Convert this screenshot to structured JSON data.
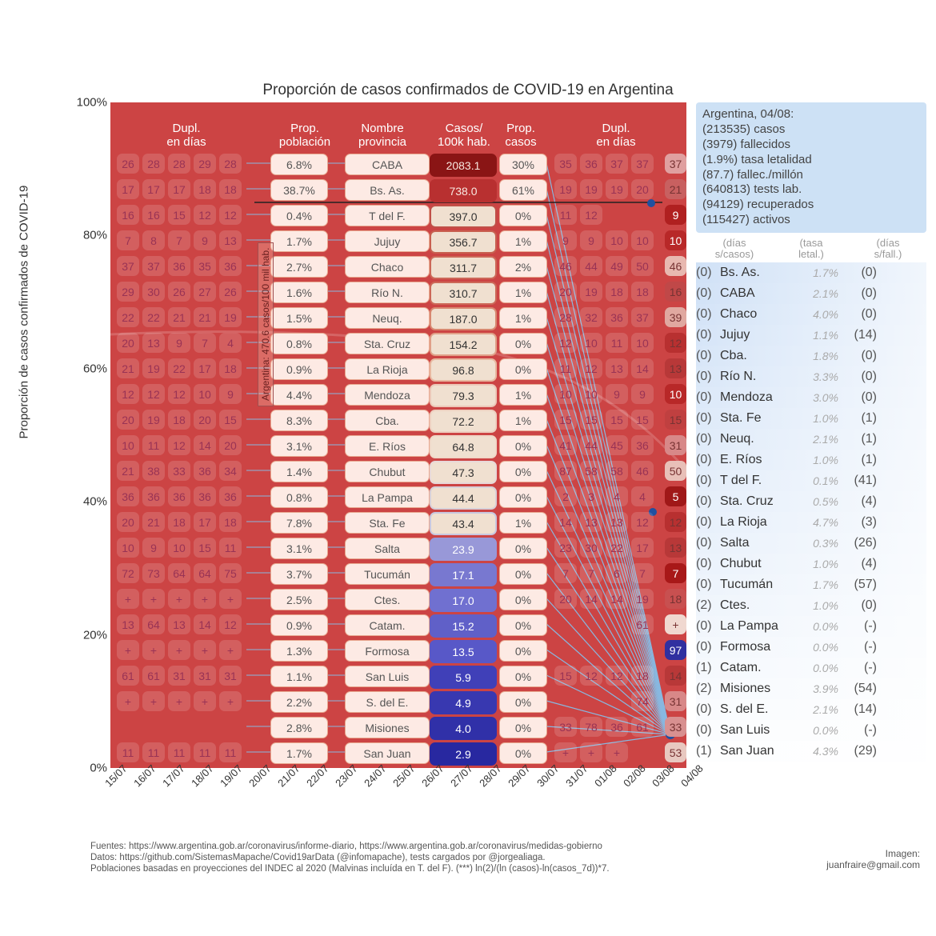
{
  "title": "Proporción de casos confirmados de COVID-19 en Argentina",
  "ylabel": "Proporción de casos confirmados de COVID-19",
  "headers": {
    "duplL": "Dupl.\nen días",
    "prop": "Prop.\npoblación",
    "name": "Nombre\nprovincia",
    "casos": "Casos/\n100k hab.",
    "pc": "Prop.\ncasos",
    "duplR": "Dupl.\nen días"
  },
  "y_ticks": [
    0,
    20,
    40,
    60,
    80,
    100
  ],
  "x_dates": [
    "15/07",
    "16/07",
    "17/07",
    "18/07",
    "19/07",
    "20/07",
    "21/07",
    "22/07",
    "23/07",
    "24/07",
    "25/07",
    "26/07",
    "27/07",
    "28/07",
    "29/07",
    "30/07",
    "31/07",
    "01/08",
    "02/08",
    "03/08",
    "04/08"
  ],
  "arg_note": "Argentina: 470.6 casos/100 mil hab.",
  "casos_scale": {
    "lo": "#4040c0",
    "mid": "#f0e0d0",
    "hi": "#9a1010"
  },
  "rows": [
    {
      "dL": [
        "26",
        "28",
        "28",
        "29",
        "28"
      ],
      "prop": "6.8%",
      "name": "CABA",
      "casos": "2083.1",
      "cCol": "#8a1515",
      "pc": "30%",
      "dR": [
        "35",
        "36",
        "37",
        "37"
      ],
      "dup": "37",
      "dupCol": "#e0a0a0"
    },
    {
      "dL": [
        "17",
        "17",
        "17",
        "18",
        "18"
      ],
      "prop": "38.7%",
      "name": "Bs. As.",
      "casos": "738.0",
      "cCol": "#b83030",
      "pc": "61%",
      "dR": [
        "19",
        "19",
        "19",
        "20"
      ],
      "dup": "21",
      "dupCol": "#c86060"
    },
    {
      "dL": [
        "16",
        "16",
        "15",
        "12",
        "12"
      ],
      "prop": "0.4%",
      "name": "T del F.",
      "casos": "397.0",
      "cCol": "#c05048",
      "pc": "0%",
      "dR": [
        "11",
        "12",
        "",
        ""
      ],
      "dup": "9",
      "dupCol": "#b02020"
    },
    {
      "dL": [
        "7",
        "8",
        "7",
        "9",
        "13"
      ],
      "prop": "1.7%",
      "name": "Jujuy",
      "casos": "356.7",
      "cCol": "#c86050",
      "pc": "1%",
      "dR": [
        "9",
        "9",
        "10",
        "10"
      ],
      "dup": "10",
      "dupCol": "#b82828"
    },
    {
      "dL": [
        "37",
        "37",
        "36",
        "35",
        "36"
      ],
      "prop": "2.7%",
      "name": "Chaco",
      "casos": "311.7",
      "cCol": "#cc6858",
      "pc": "2%",
      "dR": [
        "46",
        "44",
        "49",
        "50"
      ],
      "dup": "46",
      "dupCol": "#e8b8b0"
    },
    {
      "dL": [
        "29",
        "30",
        "26",
        "27",
        "26"
      ],
      "prop": "1.6%",
      "name": "Río N.",
      "casos": "310.7",
      "cCol": "#cc6858",
      "pc": "1%",
      "dR": [
        "20",
        "19",
        "18",
        "18"
      ],
      "dup": "16",
      "dupCol": "#c04848"
    },
    {
      "dL": [
        "22",
        "22",
        "21",
        "21",
        "19"
      ],
      "prop": "1.5%",
      "name": "Neuq.",
      "casos": "187.0",
      "cCol": "#d88870",
      "pc": "1%",
      "dR": [
        "28",
        "32",
        "36",
        "37"
      ],
      "dup": "39",
      "dupCol": "#e0a8a0"
    },
    {
      "dL": [
        "20",
        "13",
        "9",
        "7",
        "4"
      ],
      "prop": "0.8%",
      "name": "Sta. Cruz",
      "casos": "154.2",
      "cCol": "#e0a088",
      "pc": "0%",
      "dR": [
        "12",
        "10",
        "11",
        "10"
      ],
      "dup": "12",
      "dupCol": "#b83030"
    },
    {
      "dL": [
        "21",
        "19",
        "22",
        "17",
        "18"
      ],
      "prop": "0.9%",
      "name": "La Rioja",
      "casos": "96.8",
      "cCol": "#e8b8a0",
      "pc": "0%",
      "dR": [
        "11",
        "12",
        "13",
        "14"
      ],
      "dup": "13",
      "dupCol": "#b83838"
    },
    {
      "dL": [
        "12",
        "12",
        "12",
        "10",
        "9"
      ],
      "prop": "4.4%",
      "name": "Mendoza",
      "casos": "79.3",
      "cCol": "#ecc8b8",
      "pc": "1%",
      "dR": [
        "10",
        "10",
        "9",
        "9"
      ],
      "dup": "10",
      "dupCol": "#b82828"
    },
    {
      "dL": [
        "20",
        "19",
        "18",
        "20",
        "15"
      ],
      "prop": "8.3%",
      "name": "Cba.",
      "casos": "72.2",
      "cCol": "#eed0c0",
      "pc": "1%",
      "dR": [
        "15",
        "15",
        "15",
        "15"
      ],
      "dup": "15",
      "dupCol": "#c04040"
    },
    {
      "dL": [
        "10",
        "11",
        "12",
        "14",
        "20"
      ],
      "prop": "3.1%",
      "name": "E. Ríos",
      "casos": "64.8",
      "cCol": "#f0d8c8",
      "pc": "0%",
      "dR": [
        "41",
        "44",
        "45",
        "36"
      ],
      "dup": "31",
      "dupCol": "#d88888"
    },
    {
      "dL": [
        "21",
        "38",
        "33",
        "36",
        "34"
      ],
      "prop": "1.4%",
      "name": "Chubut",
      "casos": "47.3",
      "cCol": "#e8d8d8",
      "pc": "0%",
      "dR": [
        "87",
        "58",
        "58",
        "46"
      ],
      "dup": "50",
      "dupCol": "#e8c0b8"
    },
    {
      "dL": [
        "36",
        "36",
        "36",
        "36",
        "36"
      ],
      "prop": "0.8%",
      "name": "La Pampa",
      "casos": "44.4",
      "cCol": "#d8d0d8",
      "pc": "0%",
      "dR": [
        "2",
        "3",
        "4",
        "4"
      ],
      "dup": "5",
      "dupCol": "#a01818"
    },
    {
      "dL": [
        "20",
        "21",
        "18",
        "17",
        "18"
      ],
      "prop": "7.8%",
      "name": "Sta. Fe",
      "casos": "43.4",
      "cCol": "#c8c8e0",
      "pc": "1%",
      "dR": [
        "14",
        "13",
        "13",
        "12"
      ],
      "dup": "12",
      "dupCol": "#b83030"
    },
    {
      "dL": [
        "10",
        "9",
        "10",
        "15",
        "11"
      ],
      "prop": "3.1%",
      "name": "Salta",
      "casos": "23.9",
      "cCol": "#9898d8",
      "pc": "0%",
      "dR": [
        "23",
        "30",
        "22",
        "17"
      ],
      "dup": "13",
      "dupCol": "#b83838"
    },
    {
      "dL": [
        "72",
        "73",
        "64",
        "64",
        "75"
      ],
      "prop": "3.7%",
      "name": "Tucumán",
      "casos": "17.1",
      "cCol": "#7878d0",
      "pc": "0%",
      "dR": [
        "7",
        "7",
        "6",
        "7"
      ],
      "dup": "7",
      "dupCol": "#a81818"
    },
    {
      "dL": [
        "+",
        "+",
        "+",
        "+",
        "+"
      ],
      "prop": "2.5%",
      "name": "Ctes.",
      "casos": "17.0",
      "cCol": "#7070d0",
      "pc": "0%",
      "dR": [
        "20",
        "14",
        "14",
        "19"
      ],
      "dup": "18",
      "dupCol": "#c85050"
    },
    {
      "dL": [
        "13",
        "64",
        "13",
        "14",
        "12"
      ],
      "prop": "0.9%",
      "name": "Catam.",
      "casos": "15.2",
      "cCol": "#6060c8",
      "pc": "0%",
      "dR": [
        "",
        "",
        "",
        "61"
      ],
      "dup": "+",
      "dupCol": "#f0d8d0"
    },
    {
      "dL": [
        "+",
        "+",
        "+",
        "+",
        "+"
      ],
      "prop": "1.3%",
      "name": "Formosa",
      "casos": "13.5",
      "cCol": "#5858c8",
      "pc": "0%",
      "dR": [
        "",
        "",
        "",
        ""
      ],
      "dup": "97",
      "dupCol": "#3030a0"
    },
    {
      "dL": [
        "61",
        "61",
        "31",
        "31",
        "31"
      ],
      "prop": "1.1%",
      "name": "San Luis",
      "casos": "5.9",
      "cCol": "#4040b8",
      "pc": "0%",
      "dR": [
        "15",
        "12",
        "12",
        "18"
      ],
      "dup": "14",
      "dupCol": "#b83838"
    },
    {
      "dL": [
        "+",
        "+",
        "+",
        "+",
        "+"
      ],
      "prop": "2.2%",
      "name": "S. del E.",
      "casos": "4.9",
      "cCol": "#3838b0",
      "pc": "0%",
      "dR": [
        "",
        "",
        "",
        "74"
      ],
      "dup": "31",
      "dupCol": "#d88888"
    },
    {
      "dL": [
        "",
        "",
        "",
        "",
        ""
      ],
      "prop": "2.8%",
      "name": "Misiones",
      "casos": "4.0",
      "cCol": "#3030a8",
      "pc": "0%",
      "dR": [
        "33",
        "78",
        "36",
        "61"
      ],
      "dup": "33",
      "dupCol": "#d89090"
    },
    {
      "dL": [
        "11",
        "11",
        "11",
        "11",
        "11"
      ],
      "prop": "1.7%",
      "name": "San Juan",
      "casos": "2.9",
      "cCol": "#2828a0",
      "pc": "0%",
      "dR": [
        "+",
        "+",
        "+",
        ""
      ],
      "dup": "53",
      "dupCol": "#e8c8c0"
    }
  ],
  "summary": {
    "head": "Argentina, 04/08:",
    "lines": [
      "(213535) casos",
      "(3979) fallecidos",
      "(1.9%) tasa letalidad",
      "(87.7) fallec./millón",
      "(640813) tests lab.",
      "(94129) recuperados",
      "(115427) activos"
    ]
  },
  "right_header": [
    "(días\ns/casos)",
    "(tasa\nletal.)",
    "(días\ns/fall.)"
  ],
  "right_rows": [
    {
      "d": "(0)",
      "n": "Bs. As.",
      "t": "1.7%",
      "f": "(0)"
    },
    {
      "d": "(0)",
      "n": "CABA",
      "t": "2.1%",
      "f": "(0)"
    },
    {
      "d": "(0)",
      "n": "Chaco",
      "t": "4.0%",
      "f": "(0)"
    },
    {
      "d": "(0)",
      "n": "Jujuy",
      "t": "1.1%",
      "f": "(14)"
    },
    {
      "d": "(0)",
      "n": "Cba.",
      "t": "1.8%",
      "f": "(0)"
    },
    {
      "d": "(0)",
      "n": "Río N.",
      "t": "3.3%",
      "f": "(0)"
    },
    {
      "d": "(0)",
      "n": "Mendoza",
      "t": "3.0%",
      "f": "(0)"
    },
    {
      "d": "(0)",
      "n": "Sta. Fe",
      "t": "1.0%",
      "f": "(1)"
    },
    {
      "d": "(0)",
      "n": "Neuq.",
      "t": "2.1%",
      "f": "(1)"
    },
    {
      "d": "(0)",
      "n": "E. Ríos",
      "t": "1.0%",
      "f": "(1)"
    },
    {
      "d": "(0)",
      "n": "T del F.",
      "t": "0.1%",
      "f": "(41)"
    },
    {
      "d": "(0)",
      "n": "Sta. Cruz",
      "t": "0.5%",
      "f": "(4)"
    },
    {
      "d": "(0)",
      "n": "La Rioja",
      "t": "4.7%",
      "f": "(3)"
    },
    {
      "d": "(0)",
      "n": "Salta",
      "t": "0.3%",
      "f": "(26)"
    },
    {
      "d": "(0)",
      "n": "Chubut",
      "t": "1.0%",
      "f": "(4)"
    },
    {
      "d": "(0)",
      "n": "Tucumán",
      "t": "1.7%",
      "f": "(57)"
    },
    {
      "d": "(2)",
      "n": "Ctes.",
      "t": "1.0%",
      "f": "(0)"
    },
    {
      "d": "(0)",
      "n": "La Pampa",
      "t": "0.0%",
      "f": "(-)"
    },
    {
      "d": "(0)",
      "n": "Formosa",
      "t": "0.0%",
      "f": "(-)"
    },
    {
      "d": "(1)",
      "n": "Catam.",
      "t": "0.0%",
      "f": "(-)"
    },
    {
      "d": "(2)",
      "n": "Misiones",
      "t": "3.9%",
      "f": "(54)"
    },
    {
      "d": "(0)",
      "n": "S. del E.",
      "t": "2.1%",
      "f": "(14)"
    },
    {
      "d": "(0)",
      "n": "San Luis",
      "t": "0.0%",
      "f": "(-)"
    },
    {
      "d": "(1)",
      "n": "San Juan",
      "t": "4.3%",
      "f": "(29)"
    }
  ],
  "footer": [
    "Fuentes: https://www.argentina.gob.ar/coronavirus/informe-diario, https://www.argentina.gob.ar/coronavirus/medidas-gobierno",
    "Datos: https://github.com/SistemasMapache/Covid19arData (@infomapache), tests cargados por @jorgealiaga.",
    "Poblaciones basadas en proyecciones del INDEC al 2020 (Malvinas incluída en T. del F). (***) ln(2)/(ln (casos)-ln(casos_7d))*7."
  ],
  "credit": [
    "Imagen:",
    "juanfraire@gmail.com"
  ]
}
